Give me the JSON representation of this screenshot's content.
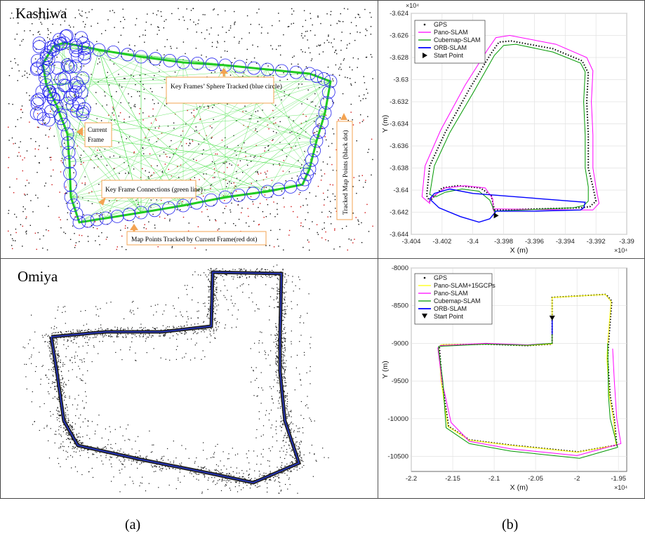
{
  "panels": {
    "kashiwa_title": "Kashiwa",
    "omiya_title": "Omiya",
    "caption_a": "(a)",
    "caption_b": "(b)"
  },
  "annotations": {
    "keyframe_sphere": "Key Frames’ Sphere Tracked (blue circle)",
    "current_frame_1": "Current",
    "current_frame_2": "Frame",
    "keyframe_connections": "Key Frame Connections (green line)",
    "map_points_current": "Map Points Tracked by Current Frame(red dot)",
    "tracked_map_points": "Tracked Map Points (black dot)"
  },
  "colors": {
    "gps": "#000000",
    "pano": "#ff00ff",
    "cubemap": "#009900",
    "orb": "#0000ff",
    "pano_gcp": "#ffff00",
    "annotation_box": "#f3a352"
  },
  "chart_data": [
    {
      "type": "line",
      "xlabel": "X (m)",
      "ylabel": "Y (m)",
      "x_exponent": "×10⁴",
      "y_exponent": "×10⁴",
      "xlim": [
        -3.404,
        -3.39
      ],
      "ylim": [
        -3.644,
        -3.624
      ],
      "xticks": [
        "-3.404",
        "-3.402",
        "-3.4",
        "-3.398",
        "-3.396",
        "-3.394",
        "-3.392",
        "-3.39"
      ],
      "yticks": [
        "-3.624",
        "-3.626",
        "-3.628",
        "-3.63",
        "-3.632",
        "-3.634",
        "-3.636",
        "-3.638",
        "-3.64",
        "-3.642",
        "-3.644"
      ],
      "grid": true,
      "legend_position": "top-left",
      "legend": [
        "GPS",
        "Pano-SLAM",
        "Cubemap-SLAM",
        "ORB-SLAM",
        "Start Point"
      ],
      "start_point": {
        "x": -3.3985,
        "y": -3.6423
      },
      "series": [
        {
          "name": "GPS",
          "points": [
            [
              -3.3985,
              -3.6423
            ],
            [
              -3.3986,
              -3.6418
            ],
            [
              -3.393,
              -3.6416
            ],
            [
              -3.3924,
              -3.6415
            ],
            [
              -3.392,
              -3.641
            ],
            [
              -3.3922,
              -3.6397
            ],
            [
              -3.3925,
              -3.638
            ],
            [
              -3.3925,
              -3.635
            ],
            [
              -3.3926,
              -3.632
            ],
            [
              -3.3925,
              -3.6294
            ],
            [
              -3.3929,
              -3.6283
            ],
            [
              -3.3948,
              -3.6272
            ],
            [
              -3.3975,
              -3.6265
            ],
            [
              -3.3983,
              -3.6266
            ],
            [
              -3.3988,
              -3.6276
            ],
            [
              -3.4002,
              -3.6308
            ],
            [
              -3.4018,
              -3.6348
            ],
            [
              -3.4028,
              -3.6378
            ],
            [
              -3.403,
              -3.6405
            ],
            [
              -3.4028,
              -3.641
            ],
            [
              -3.402,
              -3.6398
            ],
            [
              -3.401,
              -3.6396
            ],
            [
              -3.3995,
              -3.6398
            ],
            [
              -3.3988,
              -3.6405
            ],
            [
              -3.3986,
              -3.6418
            ]
          ]
        },
        {
          "name": "Pano-SLAM",
          "points": [
            [
              -3.3985,
              -3.6423
            ],
            [
              -3.3987,
              -3.6417
            ],
            [
              -3.393,
              -3.6418
            ],
            [
              -3.3922,
              -3.6418
            ],
            [
              -3.3918,
              -3.6412
            ],
            [
              -3.392,
              -3.6397
            ],
            [
              -3.3922,
              -3.638
            ],
            [
              -3.3922,
              -3.635
            ],
            [
              -3.3923,
              -3.632
            ],
            [
              -3.3922,
              -3.6292
            ],
            [
              -3.3926,
              -3.628
            ],
            [
              -3.3946,
              -3.6268
            ],
            [
              -3.3976,
              -3.626
            ],
            [
              -3.3985,
              -3.6262
            ],
            [
              -3.399,
              -3.6272
            ],
            [
              -3.4005,
              -3.6305
            ],
            [
              -3.4021,
              -3.6346
            ],
            [
              -3.4031,
              -3.6378
            ],
            [
              -3.4033,
              -3.6406
            ],
            [
              -3.4028,
              -3.6412
            ],
            [
              -3.4028,
              -3.6408
            ],
            [
              -3.4018,
              -3.6398
            ],
            [
              -3.4005,
              -3.6396
            ],
            [
              -3.3992,
              -3.6398
            ],
            [
              -3.3987,
              -3.6408
            ],
            [
              -3.3987,
              -3.6417
            ]
          ]
        },
        {
          "name": "Cubemap-SLAM",
          "points": [
            [
              -3.3985,
              -3.6423
            ],
            [
              -3.3986,
              -3.6419
            ],
            [
              -3.3935,
              -3.6416
            ],
            [
              -3.3928,
              -3.6414
            ],
            [
              -3.3925,
              -3.641
            ],
            [
              -3.3925,
              -3.6397
            ],
            [
              -3.3927,
              -3.638
            ],
            [
              -3.3927,
              -3.635
            ],
            [
              -3.3928,
              -3.632
            ],
            [
              -3.3927,
              -3.6293
            ],
            [
              -3.393,
              -3.6285
            ],
            [
              -3.3948,
              -3.6275
            ],
            [
              -3.3972,
              -3.6268
            ],
            [
              -3.398,
              -3.6269
            ],
            [
              -3.3986,
              -3.6278
            ],
            [
              -3.3999,
              -3.631
            ],
            [
              -3.4015,
              -3.6348
            ],
            [
              -3.4025,
              -3.6378
            ],
            [
              -3.4028,
              -3.6404
            ],
            [
              -3.4024,
              -3.6406
            ],
            [
              -3.4018,
              -3.6402
            ],
            [
              -3.4007,
              -3.6399
            ],
            [
              -3.3996,
              -3.6401
            ],
            [
              -3.3989,
              -3.6409
            ],
            [
              -3.3986,
              -3.6419
            ]
          ]
        },
        {
          "name": "ORB-SLAM",
          "points": [
            [
              -3.3985,
              -3.6423
            ],
            [
              -3.3986,
              -3.6421
            ],
            [
              -3.3985,
              -3.6419
            ],
            [
              -3.396,
              -3.6419
            ],
            [
              -3.393,
              -3.6418
            ],
            [
              -3.3928,
              -3.6416
            ],
            [
              -3.3927,
              -3.6411
            ],
            [
              -3.4,
              -3.6403
            ],
            [
              -3.4015,
              -3.6399
            ],
            [
              -3.4025,
              -3.6403
            ],
            [
              -3.4028,
              -3.6408
            ],
            [
              -3.4022,
              -3.6416
            ],
            [
              -3.4008,
              -3.6424
            ],
            [
              -3.3996,
              -3.6429
            ],
            [
              -3.3989,
              -3.6426
            ],
            [
              -3.3986,
              -3.6421
            ]
          ]
        }
      ]
    },
    {
      "type": "line",
      "xlabel": "X (m)",
      "ylabel": "Y (m)",
      "x_exponent": "×10⁴",
      "xlim": [
        -2.2,
        -1.94
      ],
      "ylim": [
        -10700,
        -8000
      ],
      "xticks": [
        "-2.2",
        "-2.15",
        "-2.1",
        "-2.05",
        "-2",
        "-1.95"
      ],
      "yticks": [
        "-8000",
        "-8500",
        "-9000",
        "-9500",
        "-10000",
        "-10500"
      ],
      "grid": true,
      "legend_position": "top-left",
      "legend": [
        "GPS",
        "Pano-SLAM+15GCPs",
        "Pano-SLAM",
        "Cubemap-SLAM",
        "ORB-SLAM",
        "Start Point"
      ],
      "start_point": {
        "x": -2.03,
        "y": -8660
      },
      "series": [
        {
          "name": "GPS",
          "points": [
            [
              -2.03,
              -8660
            ],
            [
              -2.03,
              -8390
            ],
            [
              -1.965,
              -8350
            ],
            [
              -1.958,
              -8440
            ],
            [
              -1.962,
              -9000
            ],
            [
              -1.963,
              -9200
            ],
            [
              -1.96,
              -9700
            ],
            [
              -1.955,
              -10000
            ],
            [
              -1.952,
              -10350
            ],
            [
              -1.999,
              -10440
            ],
            [
              -2.08,
              -10350
            ],
            [
              -2.13,
              -10280
            ],
            [
              -2.155,
              -10100
            ],
            [
              -2.163,
              -9500
            ],
            [
              -2.166,
              -9050
            ],
            [
              -2.163,
              -9020
            ],
            [
              -2.11,
              -9010
            ],
            [
              -2.06,
              -9030
            ],
            [
              -2.03,
              -9010
            ],
            [
              -2.03,
              -8660
            ]
          ]
        },
        {
          "name": "Pano-SLAM+15GCPs",
          "points": [
            [
              -2.03,
              -8660
            ],
            [
              -2.03,
              -8392
            ],
            [
              -1.966,
              -8352
            ],
            [
              -1.959,
              -8442
            ],
            [
              -1.963,
              -9002
            ],
            [
              -1.964,
              -9202
            ],
            [
              -1.961,
              -9702
            ],
            [
              -1.956,
              -10002
            ],
            [
              -1.953,
              -10352
            ],
            [
              -2.0,
              -10445
            ],
            [
              -2.08,
              -10355
            ],
            [
              -2.13,
              -10285
            ],
            [
              -2.156,
              -10103
            ],
            [
              -2.164,
              -9503
            ],
            [
              -2.167,
              -9050
            ],
            [
              -2.164,
              -9018
            ],
            [
              -2.11,
              -9008
            ],
            [
              -2.06,
              -9028
            ],
            [
              -2.03,
              -9008
            ],
            [
              -2.03,
              -8660
            ]
          ]
        },
        {
          "name": "Pano-SLAM",
          "points": [
            [
              -2.03,
              -8660
            ],
            [
              -2.03,
              -9000
            ],
            [
              -2.06,
              -9020
            ],
            [
              -2.11,
              -9000
            ],
            [
              -2.165,
              -9030
            ],
            [
              -2.168,
              -9060
            ],
            [
              -2.163,
              -9500
            ],
            [
              -2.152,
              -10050
            ],
            [
              -2.13,
              -10300
            ],
            [
              -2.08,
              -10400
            ],
            [
              -2.0,
              -10490
            ],
            [
              -1.947,
              -10330
            ],
            [
              -1.952,
              -10000
            ],
            [
              -1.955,
              -9500
            ],
            [
              -1.957,
              -9070
            ]
          ]
        },
        {
          "name": "Cubemap-SLAM",
          "points": [
            [
              -2.03,
              -8660
            ],
            [
              -2.03,
              -9000
            ],
            [
              -2.06,
              -9025
            ],
            [
              -2.11,
              -9010
            ],
            [
              -2.167,
              -9040
            ],
            [
              -2.167,
              -9080
            ],
            [
              -2.162,
              -9500
            ],
            [
              -2.158,
              -10120
            ],
            [
              -2.13,
              -10330
            ],
            [
              -2.08,
              -10430
            ],
            [
              -1.997,
              -10525
            ],
            [
              -1.951,
              -10380
            ],
            [
              -1.96,
              -10000
            ],
            [
              -1.962,
              -9700
            ],
            [
              -1.963,
              -9000
            ]
          ]
        },
        {
          "name": "ORB-SLAM",
          "points": [
            [
              -2.03,
              -8650
            ],
            [
              -2.03,
              -8880
            ]
          ]
        }
      ]
    }
  ]
}
